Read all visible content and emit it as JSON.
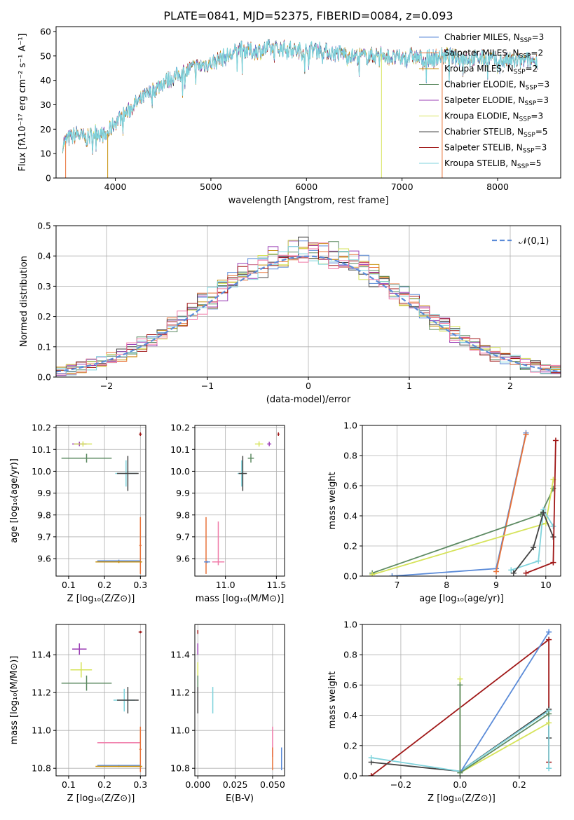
{
  "figure_title": "PLATE=0841, MJD=52375, FIBERID=0084, z=0.093",
  "palette": {
    "Chabrier MILES": "#5b8bd8",
    "Salpeter MILES": "#e8733a",
    "Kroupa MILES": "#c9920f",
    "Chabrier ELODIE": "#5e8b63",
    "Salpeter ELODIE": "#9b3fb5",
    "Kroupa ELODIE": "#d6e35a",
    "Chabrier STELIB": "#444444",
    "Salpeter STELIB": "#a01818",
    "Kroupa STELIB": "#7fd3dc",
    "pink": "#f07aa8"
  },
  "chart_data": [
    {
      "id": "spectrum",
      "type": "line",
      "xlabel": "wavelength [Angstrom, rest frame]",
      "ylabel": "Flux [fλ10⁻¹⁷ erg cm⁻² s⁻¹ A⁻¹]",
      "xlim": [
        3380,
        8660
      ],
      "ylim": [
        0,
        62
      ],
      "xticks": [
        "4000",
        "5000",
        "6000",
        "7000",
        "8000"
      ],
      "yticks": [
        "0",
        "10",
        "20",
        "30",
        "40",
        "50",
        "60"
      ],
      "legend": {
        "placement": "top-right",
        "entries": [
          {
            "label": "Chabrier MILES, N",
            "sub": "SSP",
            "tail": "=3"
          },
          {
            "label": "Salpeter MILES, N",
            "sub": "SSP",
            "tail": "=2"
          },
          {
            "label": "Kroupa MILES, N",
            "sub": "SSP",
            "tail": "=2"
          },
          {
            "label": "Chabrier ELODIE, N",
            "sub": "SSP",
            "tail": "=3"
          },
          {
            "label": "Salpeter ELODIE, N",
            "sub": "SSP",
            "tail": "=3"
          },
          {
            "label": "Kroupa ELODIE, N",
            "sub": "SSP",
            "tail": "=3"
          },
          {
            "label": "Chabrier STELIB, N",
            "sub": "SSP",
            "tail": "=5"
          },
          {
            "label": "Salpeter STELIB, N",
            "sub": "SSP",
            "tail": "=3"
          },
          {
            "label": "Kroupa STELIB, N",
            "sub": "SSP",
            "tail": "=5"
          }
        ]
      },
      "envelope": [
        [
          3450,
          14
        ],
        [
          3500,
          16
        ],
        [
          3600,
          18
        ],
        [
          3700,
          16
        ],
        [
          3800,
          19
        ],
        [
          3900,
          17
        ],
        [
          3950,
          20
        ],
        [
          4000,
          23
        ],
        [
          4100,
          26
        ],
        [
          4200,
          30
        ],
        [
          4300,
          33
        ],
        [
          4400,
          36
        ],
        [
          4500,
          39
        ],
        [
          4600,
          41
        ],
        [
          4700,
          43
        ],
        [
          4800,
          45
        ],
        [
          4900,
          46
        ],
        [
          5000,
          47
        ],
        [
          5100,
          49
        ],
        [
          5200,
          50
        ],
        [
          5300,
          53
        ],
        [
          5400,
          52
        ],
        [
          5500,
          52
        ],
        [
          5600,
          53
        ],
        [
          5700,
          53
        ],
        [
          5800,
          53
        ],
        [
          5900,
          52
        ],
        [
          6000,
          52
        ],
        [
          6100,
          53
        ],
        [
          6200,
          52
        ],
        [
          6300,
          51
        ],
        [
          6400,
          51
        ],
        [
          6500,
          50
        ],
        [
          6600,
          50
        ],
        [
          6700,
          50
        ],
        [
          6800,
          51
        ],
        [
          6900,
          49
        ],
        [
          7000,
          49
        ],
        [
          7100,
          50
        ],
        [
          7200,
          49
        ],
        [
          7300,
          49
        ],
        [
          7400,
          50
        ],
        [
          7500,
          50
        ],
        [
          7600,
          49
        ],
        [
          7700,
          49
        ],
        [
          7800,
          49
        ],
        [
          7900,
          49
        ],
        [
          8000,
          48
        ],
        [
          8100,
          48
        ],
        [
          8200,
          48
        ],
        [
          8300,
          48
        ],
        [
          8400,
          48
        ]
      ],
      "drop_lines": [
        {
          "x": 3480,
          "series": "Salpeter MILES"
        },
        {
          "x": 3920,
          "series": "Kroupa MILES"
        },
        {
          "x": 6785,
          "series": "Kroupa ELODIE"
        },
        {
          "x": 7420,
          "series": "Salpeter MILES"
        }
      ]
    },
    {
      "id": "residuals",
      "type": "histogram",
      "xlabel": "(data-model)/error",
      "ylabel": "Normed distribution",
      "xlim": [
        -2.5,
        2.5
      ],
      "ylim": [
        0,
        0.5
      ],
      "xticks": [
        "−2",
        "−1",
        "0",
        "1",
        "2"
      ],
      "yticks": [
        "0.0",
        "0.1",
        "0.2",
        "0.3",
        "0.4",
        "0.5"
      ],
      "legend": {
        "placement": "top-right",
        "label": "𝒩(0,1)"
      },
      "bin_width": 0.1,
      "bin_start": -2.5,
      "gaussian": {
        "mean": 0,
        "sigma": 1
      }
    },
    {
      "id": "age-vs-Z",
      "type": "scatter",
      "xlabel": "Z [log₁₀(Z/Z⊙)]",
      "ylabel": "age  [log₁₀(age/yr)]",
      "xlim": [
        0.065,
        0.315
      ],
      "ylim": [
        9.52,
        10.21
      ],
      "xticks": [
        "0.1",
        "0.2",
        "0.3"
      ],
      "yticks": [
        "9.6",
        "9.7",
        "9.8",
        "9.9",
        "10.0",
        "10.1",
        "10.2"
      ],
      "points": [
        {
          "series": "Salpeter STELIB",
          "x": 0.3,
          "y": 10.17,
          "xerr": 0.004,
          "yerr": 0.008
        },
        {
          "series": "Salpeter ELODIE",
          "x": 0.13,
          "y": 10.125,
          "xerr": 0.02,
          "yerr": 0.01
        },
        {
          "series": "Kroupa ELODIE",
          "x": 0.14,
          "y": 10.125,
          "xerr": 0.025,
          "yerr": 0.012
        },
        {
          "series": "Chabrier ELODIE",
          "x": 0.15,
          "y": 10.06,
          "xerr": 0.07,
          "yerr": 0.02
        },
        {
          "series": "Kroupa STELIB",
          "x": 0.26,
          "y": 9.99,
          "xerr": 0.03,
          "yerr": 0.06
        },
        {
          "series": "Chabrier STELIB",
          "x": 0.265,
          "y": 9.99,
          "xerr": 0.03,
          "yerr": 0.08
        },
        {
          "series": "Salpeter MILES",
          "x": 0.3,
          "y": 9.66,
          "xerr": 0.003,
          "yerr": 0.13
        },
        {
          "series": "Chabrier MILES",
          "x": 0.24,
          "y": 9.59,
          "xerr": 0.06,
          "yerr": 0.005
        },
        {
          "series": "Kroupa MILES",
          "x": 0.24,
          "y": 9.585,
          "xerr": 0.065,
          "yerr": 0.005
        }
      ]
    },
    {
      "id": "age-vs-mass",
      "type": "scatter",
      "xlabel": "mass [log₁₀(M/M⊙)]",
      "ylabel": "",
      "xlim": [
        10.7,
        11.58
      ],
      "ylim": [
        9.52,
        10.21
      ],
      "xticks": [
        "11.0",
        "11.5"
      ],
      "yticks": [
        "9.6",
        "9.7",
        "9.8",
        "9.9",
        "10.0",
        "10.1",
        "10.2"
      ],
      "points": [
        {
          "series": "Salpeter STELIB",
          "x": 11.52,
          "y": 10.17,
          "xerr": 0.01,
          "yerr": 0.008
        },
        {
          "series": "Salpeter ELODIE",
          "x": 11.43,
          "y": 10.125,
          "xerr": 0.02,
          "yerr": 0.01
        },
        {
          "series": "Kroupa ELODIE",
          "x": 11.33,
          "y": 10.125,
          "xerr": 0.04,
          "yerr": 0.012
        },
        {
          "series": "Chabrier ELODIE",
          "x": 11.25,
          "y": 10.06,
          "xerr": 0.03,
          "yerr": 0.02
        },
        {
          "series": "Kroupa STELIB",
          "x": 11.16,
          "y": 9.99,
          "xerr": 0.04,
          "yerr": 0.06
        },
        {
          "series": "Chabrier STELIB",
          "x": 11.17,
          "y": 9.99,
          "xerr": 0.04,
          "yerr": 0.08
        },
        {
          "series": "Salpeter MILES",
          "x": 10.81,
          "y": 9.66,
          "xerr": 0.003,
          "yerr": 0.13
        },
        {
          "series": "pink",
          "x": 10.93,
          "y": 9.67,
          "xerr": 0.003,
          "yerr": 0.1
        },
        {
          "series": "Chabrier MILES",
          "x": 10.82,
          "y": 9.585,
          "xerr": 0.03,
          "yerr": 0.005
        },
        {
          "series": "pink",
          "x": 10.93,
          "y": 9.585,
          "xerr": 0.06,
          "yerr": 0.003
        }
      ]
    },
    {
      "id": "mass-weight-vs-age",
      "type": "line",
      "xlabel": "age  [log₁₀(age/yr)]",
      "ylabel": "mass weight",
      "xlim": [
        6.3,
        10.3
      ],
      "ylim": [
        0,
        1
      ],
      "xticks": [
        "7",
        "8",
        "9",
        "10"
      ],
      "yticks": [
        "0.0",
        "0.2",
        "0.4",
        "0.6",
        "0.8",
        "1.0"
      ],
      "series": [
        {
          "name": "Chabrier MILES",
          "points": [
            [
              6.9,
              0.0
            ],
            [
              9.0,
              0.05
            ],
            [
              9.6,
              0.95
            ]
          ]
        },
        {
          "name": "Salpeter MILES",
          "points": [
            [
              9.0,
              0.03
            ],
            [
              9.6,
              0.94
            ]
          ]
        },
        {
          "name": "Chabrier ELODIE",
          "points": [
            [
              6.5,
              0.02
            ],
            [
              9.9,
              0.41
            ],
            [
              10.15,
              0.58
            ]
          ]
        },
        {
          "name": "Kroupa ELODIE",
          "points": [
            [
              6.5,
              0.01
            ],
            [
              10.0,
              0.35
            ],
            [
              10.15,
              0.64
            ]
          ]
        },
        {
          "name": "Kroupa STELIB",
          "points": [
            [
              9.3,
              0.04
            ],
            [
              9.85,
              0.1
            ],
            [
              9.95,
              0.44
            ],
            [
              10.15,
              0.33
            ]
          ]
        },
        {
          "name": "Chabrier STELIB",
          "points": [
            [
              9.35,
              0.02
            ],
            [
              9.75,
              0.19
            ],
            [
              9.95,
              0.42
            ],
            [
              10.15,
              0.26
            ]
          ]
        },
        {
          "name": "Salpeter STELIB",
          "points": [
            [
              9.6,
              0.02
            ],
            [
              10.15,
              0.09
            ],
            [
              10.2,
              0.9
            ]
          ]
        }
      ]
    },
    {
      "id": "mass-vs-Z",
      "type": "scatter",
      "xlabel": "Z [log₁₀(Z/Z⊙)]",
      "ylabel": "mass [log₁₀(M/M⊙)]",
      "xlim": [
        0.065,
        0.315
      ],
      "ylim": [
        10.76,
        11.56
      ],
      "xticks": [
        "0.1",
        "0.2",
        "0.3"
      ],
      "yticks": [
        "10.8",
        "11.0",
        "11.2",
        "11.4"
      ],
      "points": [
        {
          "series": "Salpeter STELIB",
          "x": 0.3,
          "y": 11.52,
          "xerr": 0.005,
          "yerr": 0.006
        },
        {
          "series": "Salpeter ELODIE",
          "x": 0.13,
          "y": 11.43,
          "xerr": 0.02,
          "yerr": 0.03
        },
        {
          "series": "Kroupa ELODIE",
          "x": 0.135,
          "y": 11.32,
          "xerr": 0.03,
          "yerr": 0.04
        },
        {
          "series": "Chabrier ELODIE",
          "x": 0.15,
          "y": 11.25,
          "xerr": 0.07,
          "yerr": 0.04
        },
        {
          "series": "Kroupa STELIB",
          "x": 0.255,
          "y": 11.16,
          "xerr": 0.03,
          "yerr": 0.06
        },
        {
          "series": "Chabrier STELIB",
          "x": 0.265,
          "y": 11.16,
          "xerr": 0.03,
          "yerr": 0.07
        },
        {
          "series": "pink",
          "x": 0.24,
          "y": 10.935,
          "xerr": 0.06,
          "yerr": 0.003
        },
        {
          "series": "Salpeter MILES",
          "x": 0.3,
          "y": 10.9,
          "xerr": 0.003,
          "yerr": 0.12
        },
        {
          "series": "Chabrier MILES",
          "x": 0.24,
          "y": 10.815,
          "xerr": 0.06,
          "yerr": 0.003
        },
        {
          "series": "Kroupa MILES",
          "x": 0.24,
          "y": 10.81,
          "xerr": 0.065,
          "yerr": 0.003
        }
      ]
    },
    {
      "id": "mass-vs-ebv",
      "type": "scatter",
      "xlabel": "E(B-V)",
      "ylabel": "",
      "xlim": [
        -0.002,
        0.058
      ],
      "ylim": [
        10.76,
        11.56
      ],
      "xticks": [
        "0.000",
        "0.025",
        "0.050"
      ],
      "yticks": [
        "10.8",
        "11.0",
        "11.2",
        "11.4"
      ],
      "points": [
        {
          "series": "Salpeter STELIB",
          "x": 0.0,
          "y": 11.52,
          "xerr": 0.0,
          "yerr": 0.01
        },
        {
          "series": "Salpeter ELODIE",
          "x": 0.0,
          "y": 11.43,
          "xerr": 0.0,
          "yerr": 0.03
        },
        {
          "series": "Kroupa ELODIE",
          "x": 0.0,
          "y": 11.32,
          "xerr": 0.0,
          "yerr": 0.04
        },
        {
          "series": "Chabrier ELODIE",
          "x": 0.0,
          "y": 11.25,
          "xerr": 0.0,
          "yerr": 0.04
        },
        {
          "series": "Chabrier STELIB",
          "x": 0.0,
          "y": 11.16,
          "xerr": 0.0,
          "yerr": 0.07
        },
        {
          "series": "Kroupa STELIB",
          "x": 0.01,
          "y": 11.16,
          "xerr": 0.0,
          "yerr": 0.07
        },
        {
          "series": "pink",
          "x": 0.05,
          "y": 10.94,
          "xerr": 0.0,
          "yerr": 0.08
        },
        {
          "series": "Salpeter MILES",
          "x": 0.05,
          "y": 10.85,
          "xerr": 0.0,
          "yerr": 0.06
        },
        {
          "series": "Chabrier MILES",
          "x": 0.056,
          "y": 10.85,
          "xerr": 0.0,
          "yerr": 0.06
        }
      ]
    },
    {
      "id": "mass-weight-vs-Z",
      "type": "line",
      "xlabel": "Z [log₁₀(Z/Z⊙)]",
      "ylabel": "mass weight",
      "xlim": [
        -0.33,
        0.34
      ],
      "ylim": [
        0,
        1
      ],
      "xticks": [
        "−0.2",
        "0.0",
        "0.2"
      ],
      "yticks": [
        "0.0",
        "0.2",
        "0.4",
        "0.6",
        "0.8",
        "1.0"
      ],
      "series": [
        {
          "name": "Salpeter STELIB",
          "points": [
            [
              -0.3,
              0.0
            ],
            [
              0.3,
              0.9
            ],
            [
              0.3,
              0.09
            ]
          ]
        },
        {
          "name": "Chabrier STELIB",
          "points": [
            [
              -0.3,
              0.09
            ],
            [
              0.0,
              0.03
            ],
            [
              0.3,
              0.44
            ],
            [
              0.3,
              0.25
            ]
          ]
        },
        {
          "name": "Kroupa STELIB",
          "points": [
            [
              -0.3,
              0.12
            ],
            [
              0.0,
              0.03
            ],
            [
              0.3,
              0.43
            ],
            [
              0.3,
              0.05
            ]
          ]
        },
        {
          "name": "Chabrier MILES",
          "points": [
            [
              0.0,
              0.02
            ],
            [
              0.3,
              0.95
            ]
          ]
        },
        {
          "name": "Kroupa ELODIE",
          "points": [
            [
              0.0,
              0.64
            ],
            [
              0.0,
              0.02
            ],
            [
              0.3,
              0.35
            ]
          ]
        },
        {
          "name": "Chabrier ELODIE",
          "points": [
            [
              0.0,
              0.6
            ],
            [
              0.0,
              0.02
            ],
            [
              0.3,
              0.41
            ]
          ]
        }
      ]
    }
  ]
}
